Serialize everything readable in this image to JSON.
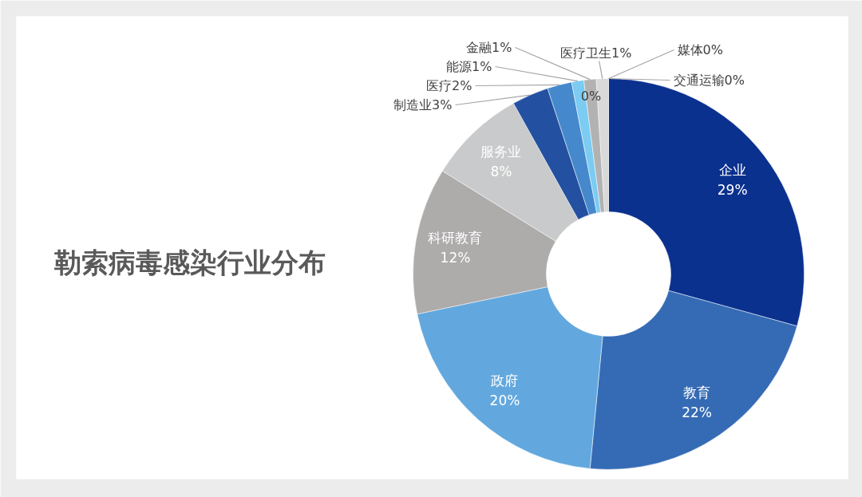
{
  "chart_data": {
    "type": "donut",
    "title": "勒索病毒感染行业分布",
    "categories": [
      "企业",
      "教育",
      "政府",
      "科研教育",
      "服务业",
      "制造业",
      "医疗",
      "能源",
      "金融",
      "医疗卫生",
      null,
      "交通运输",
      "媒体"
    ],
    "values": [
      29,
      22,
      20,
      12,
      8,
      3,
      2,
      1,
      1,
      1,
      0,
      0,
      0
    ],
    "value_labels": [
      "29%",
      "22%",
      "20%",
      "12%",
      "8%",
      "3%",
      "2%",
      "1%",
      "1%",
      "1%",
      "0%",
      "0%",
      "0%"
    ],
    "colors": [
      "#0b318f",
      "#356bb5",
      "#62a8de",
      "#aeabab",
      "#c9cacb",
      "#2350a0",
      "#4589cc",
      "#7ccbf2",
      "#b2b2b2",
      "#d9d9d9",
      null,
      null,
      null
    ]
  }
}
